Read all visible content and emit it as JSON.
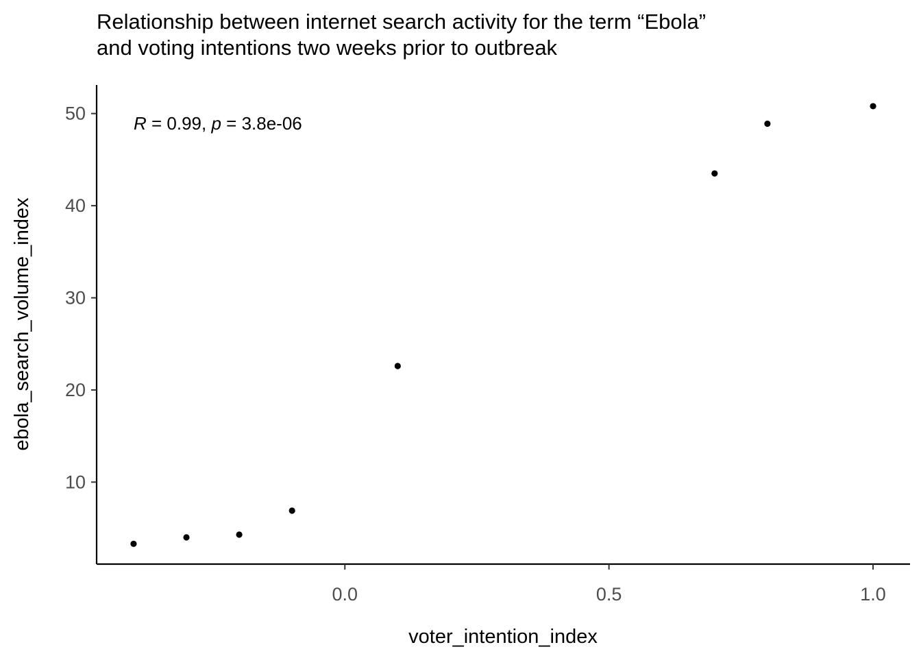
{
  "chart_data": {
    "type": "scatter",
    "title_lines": [
      "Relationship between internet search activity for the term “Ebola”",
      "and voting intentions two weeks prior to outbreak"
    ],
    "xlabel": "voter_intention_index",
    "ylabel": "ebola_search_volume_index",
    "x_ticks": [
      0.0,
      0.5,
      1.0
    ],
    "x_tick_labels": [
      "0.0",
      "0.5",
      "1.0"
    ],
    "y_ticks": [
      10,
      20,
      30,
      40,
      50
    ],
    "y_tick_labels": [
      "10",
      "20",
      "30",
      "40",
      "50"
    ],
    "xlim": [
      -0.47,
      1.07
    ],
    "ylim": [
      1.1,
      53.1
    ],
    "points": [
      {
        "x": -0.4,
        "y": 3.3
      },
      {
        "x": -0.3,
        "y": 4.0
      },
      {
        "x": -0.2,
        "y": 4.3
      },
      {
        "x": -0.1,
        "y": 6.9
      },
      {
        "x": 0.1,
        "y": 22.6
      },
      {
        "x": 0.7,
        "y": 43.5
      },
      {
        "x": 0.8,
        "y": 48.9
      },
      {
        "x": 1.0,
        "y": 50.8
      }
    ],
    "annotation": {
      "r_symbol": "R",
      "r_text": " = 0.99, ",
      "p_symbol": "p",
      "p_text": " = 3.8e-06"
    },
    "grid": false,
    "legend": "none"
  }
}
